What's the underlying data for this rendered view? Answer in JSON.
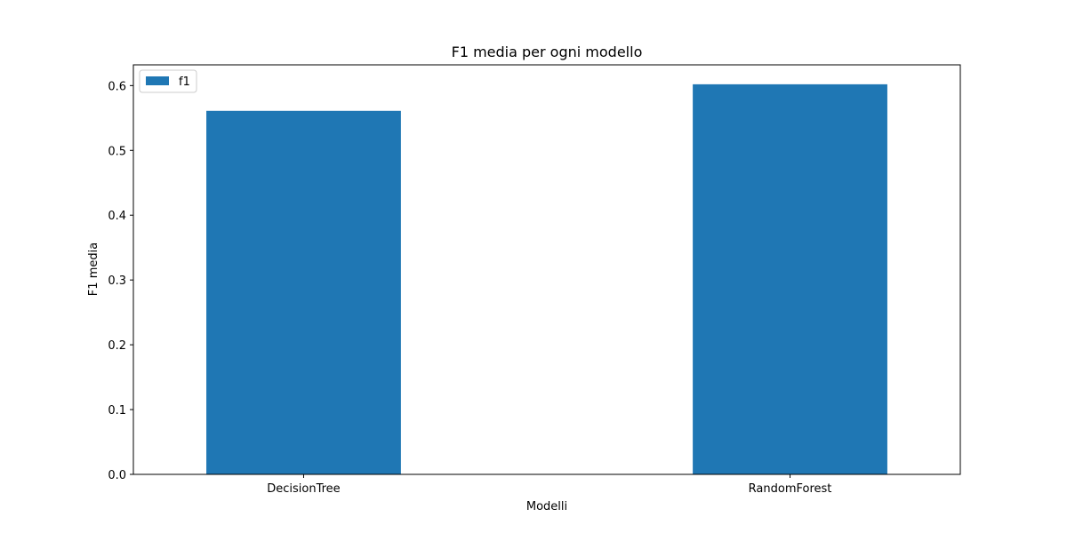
{
  "chart_data": {
    "type": "bar",
    "title": "F1 media per ogni modello",
    "xlabel": "Modelli",
    "ylabel": "F1 media",
    "categories": [
      "DecisionTree",
      "RandomForest"
    ],
    "series": [
      {
        "name": "f1",
        "values": [
          0.561,
          0.602
        ],
        "color": "#1f77b4"
      }
    ],
    "ylim": [
      0,
      0.632
    ],
    "yticks": [
      0.0,
      0.1,
      0.2,
      0.3,
      0.4,
      0.5,
      0.6
    ],
    "ytick_labels": [
      "0.0",
      "0.1",
      "0.2",
      "0.3",
      "0.4",
      "0.5",
      "0.6"
    ],
    "grid": false,
    "legend_position": "top-left"
  }
}
